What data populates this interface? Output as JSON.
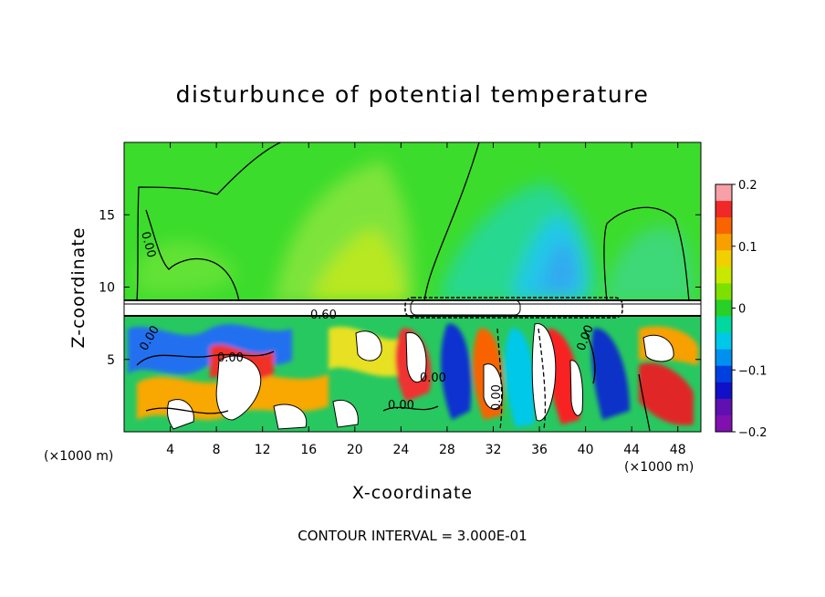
{
  "chart_data": {
    "type": "heatmap",
    "title": "disturbunce of potential temperature",
    "xlabel": "X-coordinate",
    "ylabel": "Z-coordinate",
    "x_unit": "(×1000 m)",
    "xlim": [
      0,
      50
    ],
    "ylim": [
      0,
      20
    ],
    "x_ticks": [
      4,
      8,
      12,
      16,
      20,
      24,
      28,
      32,
      36,
      40,
      44,
      48
    ],
    "y_ticks": [
      5,
      10,
      15
    ],
    "colorbar": {
      "range": [
        -0.2,
        0.2
      ],
      "ticks": [
        0.2,
        0.1,
        0,
        -0.1,
        -0.2
      ],
      "tick_labels": [
        "0.2",
        "0.1",
        "0",
        "−0.1",
        "−0.2"
      ],
      "colors": [
        "#f8a0a8",
        "#f02828",
        "#f86400",
        "#f8a000",
        "#f0d000",
        "#c8e800",
        "#7ce000",
        "#28d028",
        "#00d8a0",
        "#00c8e8",
        "#0090f0",
        "#0040e0",
        "#1010c8",
        "#6010b0",
        "#8010b0"
      ]
    },
    "contour_interval": "CONTOUR INTERVAL = 3.000E-01",
    "contour_labels": [
      "0.00",
      "0.00",
      "0.00",
      "0.00",
      "0.00",
      "0.00",
      "0.00",
      "0.60"
    ],
    "grid": false,
    "legend": "colorbar-right"
  }
}
